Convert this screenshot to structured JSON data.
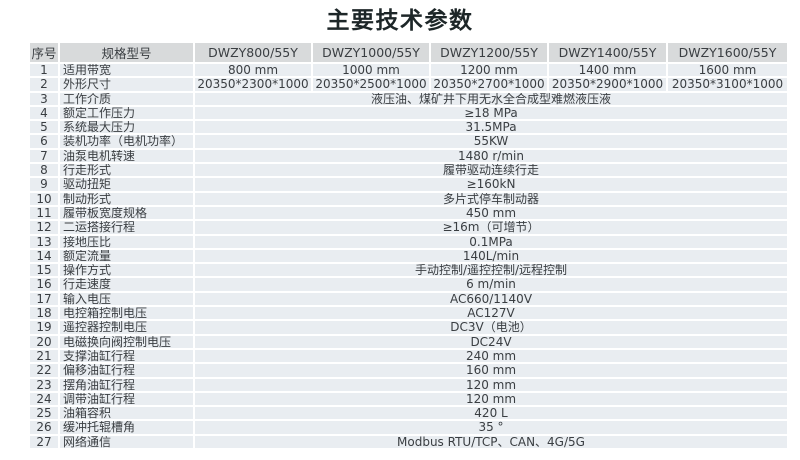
{
  "title": "主要技术参数",
  "colors": {
    "header_bg": "#d8dadb",
    "row_bg": "#e9edf1",
    "separator": "#ffffff",
    "text": "#3a3e42",
    "title_text": "#1d2628"
  },
  "table": {
    "headers": [
      "序号",
      "规格型号",
      "DWZY800/55Y",
      "DWZY1000/55Y",
      "DWZY1200/55Y",
      "DWZY1400/55Y",
      "DWZY1600/55Y"
    ],
    "rows": [
      {
        "no": "1",
        "label": "适用带宽",
        "values": [
          "800 mm",
          "1000 mm",
          "1200 mm",
          "1400 mm",
          "1600 mm"
        ]
      },
      {
        "no": "2",
        "label": "外形尺寸",
        "values": [
          "20350*2300*1000",
          "20350*2500*1000",
          "20350*2700*1000",
          "20350*2900*1000",
          "20350*3100*1000"
        ]
      },
      {
        "no": "3",
        "label": "工作介质",
        "value": "液压油、煤矿井下用无水全合成型难燃液压液"
      },
      {
        "no": "4",
        "label": "额定工作压力",
        "value": "≥18 MPa"
      },
      {
        "no": "5",
        "label": "系统最大压力",
        "value": "31.5MPa"
      },
      {
        "no": "6",
        "label": "装机功率（电机功率）",
        "value": "55KW"
      },
      {
        "no": "7",
        "label": "油泵电机转速",
        "value": "1480 r/min"
      },
      {
        "no": "8",
        "label": "行走形式",
        "value": "履带驱动连续行走"
      },
      {
        "no": "9",
        "label": "驱动扭矩",
        "value": "≥160kN"
      },
      {
        "no": "10",
        "label": "制动形式",
        "value": "多片式停车制动器"
      },
      {
        "no": "11",
        "label": "履带板宽度规格",
        "value": "450 mm"
      },
      {
        "no": "12",
        "label": "二运搭接行程",
        "value": "≥16m（可增节）"
      },
      {
        "no": "13",
        "label": "接地压比",
        "value": "0.1MPa"
      },
      {
        "no": "14",
        "label": "额定流量",
        "value": "140L/min"
      },
      {
        "no": "15",
        "label": "操作方式",
        "value": "手动控制/遥控控制/远程控制"
      },
      {
        "no": "16",
        "label": "行走速度",
        "value": "6 m/min"
      },
      {
        "no": "17",
        "label": "输入电压",
        "value": "AC660/1140V"
      },
      {
        "no": "18",
        "label": "电控箱控制电压",
        "value": "AC127V"
      },
      {
        "no": "19",
        "label": "遥控器控制电压",
        "value": "DC3V（电池）"
      },
      {
        "no": "20",
        "label": "电磁换向阀控制电压",
        "value": "DC24V"
      },
      {
        "no": "21",
        "label": "支撑油缸行程",
        "value": "240 mm"
      },
      {
        "no": "22",
        "label": "偏移油缸行程",
        "value": "160 mm"
      },
      {
        "no": "23",
        "label": "摆角油缸行程",
        "value": "120 mm"
      },
      {
        "no": "24",
        "label": "调带油缸行程",
        "value": "120 mm"
      },
      {
        "no": "25",
        "label": "油箱容积",
        "value": "420 L"
      },
      {
        "no": "26",
        "label": "缓冲托辊槽角",
        "value": "35 °"
      },
      {
        "no": "27",
        "label": "网络通信",
        "value": "Modbus RTU/TCP、CAN、4G/5G"
      }
    ]
  }
}
